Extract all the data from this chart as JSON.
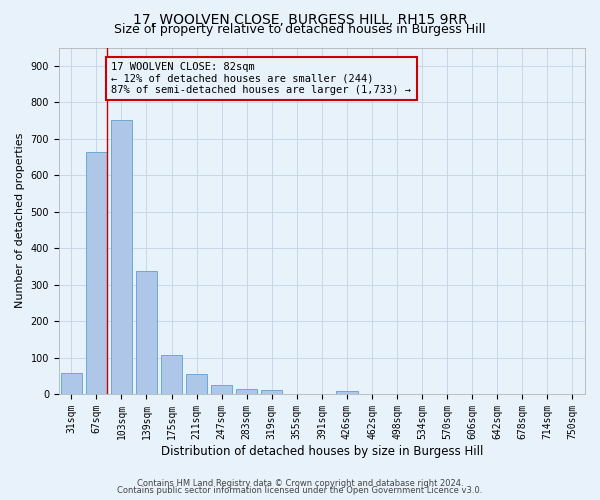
{
  "title": "17, WOOLVEN CLOSE, BURGESS HILL, RH15 9RR",
  "subtitle": "Size of property relative to detached houses in Burgess Hill",
  "xlabel": "Distribution of detached houses by size in Burgess Hill",
  "ylabel": "Number of detached properties",
  "bar_labels": [
    "31sqm",
    "67sqm",
    "103sqm",
    "139sqm",
    "175sqm",
    "211sqm",
    "247sqm",
    "283sqm",
    "319sqm",
    "355sqm",
    "391sqm",
    "426sqm",
    "462sqm",
    "498sqm",
    "534sqm",
    "570sqm",
    "606sqm",
    "642sqm",
    "678sqm",
    "714sqm",
    "750sqm"
  ],
  "bar_heights": [
    57,
    663,
    750,
    338,
    107,
    55,
    25,
    14,
    10,
    0,
    0,
    7,
    0,
    0,
    0,
    0,
    0,
    0,
    0,
    0,
    0
  ],
  "bar_color": "#aec6e8",
  "bar_edge_color": "#6aaad4",
  "grid_color": "#c8d8ea",
  "bg_color": "#e8f2fa",
  "property_line_x": 1.43,
  "property_line_color": "#cc0000",
  "annotation_line1": "17 WOOLVEN CLOSE: 82sqm",
  "annotation_line2": "← 12% of detached houses are smaller (244)",
  "annotation_line3": "87% of semi-detached houses are larger (1,733) →",
  "annotation_box_color": "#cc0000",
  "ylim": [
    0,
    950
  ],
  "yticks": [
    0,
    100,
    200,
    300,
    400,
    500,
    600,
    700,
    800,
    900
  ],
  "footer1": "Contains HM Land Registry data © Crown copyright and database right 2024.",
  "footer2": "Contains public sector information licensed under the Open Government Licence v3.0.",
  "title_fontsize": 10,
  "subtitle_fontsize": 9,
  "tick_fontsize": 7,
  "ylabel_fontsize": 8,
  "xlabel_fontsize": 8.5,
  "annot_fontsize": 7.5
}
